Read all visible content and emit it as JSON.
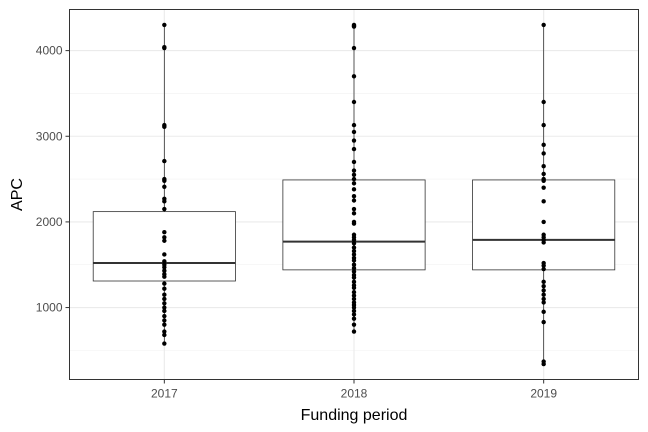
{
  "chart_data": {
    "type": "boxplot",
    "xlabel": "Funding period",
    "ylabel": "APC",
    "categories": [
      "2017",
      "2018",
      "2019"
    ],
    "ylim": [
      160,
      4480
    ],
    "y_ticks": [
      1000,
      2000,
      3000,
      4000
    ],
    "grid": true,
    "legend": "none",
    "boxes": [
      {
        "category": "2017",
        "q1": 1310,
        "median": 1520,
        "q3": 2120,
        "whisker_low": 580,
        "whisker_high": 4300
      },
      {
        "category": "2018",
        "q1": 1440,
        "median": 1770,
        "q3": 2490,
        "whisker_low": 720,
        "whisker_high": 4300
      },
      {
        "category": "2019",
        "q1": 1440,
        "median": 1790,
        "q3": 2490,
        "whisker_low": 340,
        "whisker_high": 4300
      }
    ],
    "points": [
      {
        "category": "2017",
        "values": [
          4300,
          4040,
          4030,
          3130,
          3110,
          2710,
          2500,
          2480,
          2410,
          2270,
          2240,
          2150,
          1880,
          1820,
          1780,
          1620,
          1540,
          1500,
          1470,
          1430,
          1390,
          1360,
          1280,
          1220,
          1150,
          1100,
          1050,
          1000,
          960,
          900,
          850,
          800,
          720,
          680,
          580
        ]
      },
      {
        "category": "2018",
        "values": [
          4300,
          4290,
          4280,
          4030,
          3700,
          3400,
          3130,
          3050,
          2950,
          2850,
          2700,
          2600,
          2550,
          2500,
          2450,
          2380,
          2300,
          2250,
          2150,
          2100,
          2000,
          1980,
          1850,
          1820,
          1790,
          1750,
          1700,
          1660,
          1620,
          1580,
          1550,
          1500,
          1460,
          1420,
          1380,
          1350,
          1300,
          1260,
          1230,
          1180,
          1140,
          1100,
          1060,
          1030,
          1000,
          960,
          920,
          870,
          800,
          720
        ]
      },
      {
        "category": "2019",
        "values": [
          4300,
          3400,
          3130,
          2900,
          2800,
          2650,
          2560,
          2500,
          2480,
          2400,
          2240,
          2000,
          1850,
          1820,
          1790,
          1760,
          1520,
          1490,
          1450,
          1300,
          1250,
          1200,
          1150,
          1100,
          1060,
          950,
          830,
          370,
          340
        ]
      }
    ]
  }
}
